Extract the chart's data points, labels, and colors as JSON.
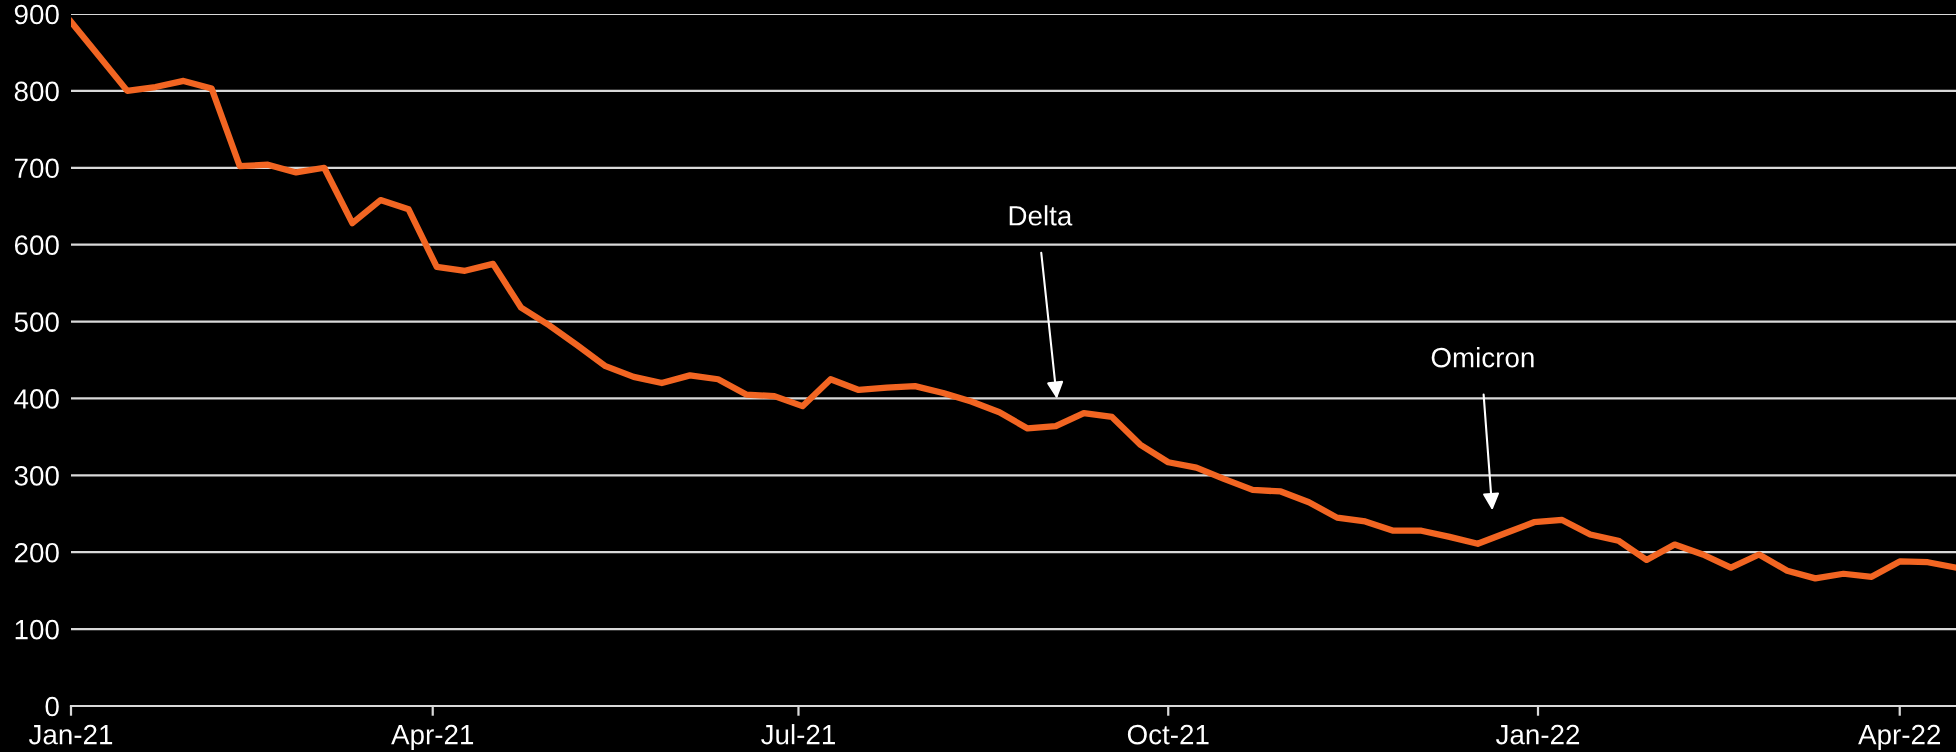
{
  "chart_data": {
    "type": "line",
    "x": [
      "2021-01-01",
      "2021-01-08",
      "2021-01-15",
      "2021-01-22",
      "2021-01-29",
      "2021-02-05",
      "2021-02-12",
      "2021-02-19",
      "2021-02-26",
      "2021-03-05",
      "2021-03-12",
      "2021-03-19",
      "2021-03-26",
      "2021-04-02",
      "2021-04-09",
      "2021-04-16",
      "2021-04-23",
      "2021-04-30",
      "2021-05-07",
      "2021-05-14",
      "2021-05-21",
      "2021-05-28",
      "2021-06-04",
      "2021-06-11",
      "2021-06-18",
      "2021-06-25",
      "2021-07-02",
      "2021-07-09",
      "2021-07-16",
      "2021-07-23",
      "2021-07-30",
      "2021-08-06",
      "2021-08-13",
      "2021-08-20",
      "2021-08-27",
      "2021-09-03",
      "2021-09-10",
      "2021-09-17",
      "2021-09-24",
      "2021-10-01",
      "2021-10-08",
      "2021-10-15",
      "2021-10-22",
      "2021-10-29",
      "2021-11-05",
      "2021-11-12",
      "2021-11-19",
      "2021-11-26",
      "2021-12-03",
      "2021-12-10",
      "2021-12-17",
      "2021-12-24",
      "2021-12-31",
      "2022-01-07",
      "2022-01-14",
      "2022-01-21",
      "2022-01-28",
      "2022-02-04",
      "2022-02-11",
      "2022-02-18",
      "2022-02-25",
      "2022-03-04",
      "2022-03-11",
      "2022-03-18",
      "2022-03-25",
      "2022-04-01",
      "2022-04-08",
      "2022-04-15"
    ],
    "series": [
      {
        "color": "#f26522",
        "values": [
          890,
          845,
          800,
          805,
          813,
          803,
          702,
          704,
          694,
          700,
          628,
          658,
          646,
          571,
          566,
          575,
          518,
          495,
          469,
          442,
          428,
          420,
          430,
          425,
          405,
          403,
          390,
          425,
          411,
          414,
          416,
          407,
          396,
          382,
          361,
          364,
          381,
          376,
          340,
          317,
          310,
          295,
          281,
          279,
          265,
          245,
          240,
          228,
          228,
          220,
          211,
          225,
          239,
          242,
          223,
          215,
          190,
          210,
          197,
          180,
          197,
          176,
          166,
          172,
          168,
          188,
          187,
          180
        ]
      }
    ],
    "xlim": [
      "2021-01-01",
      "2022-04-15"
    ],
    "ylim": [
      0,
      900
    ],
    "xticks": [
      {
        "value": "2021-01-01",
        "label": "Jan-21"
      },
      {
        "value": "2021-04-01",
        "label": "Apr-21"
      },
      {
        "value": "2021-07-01",
        "label": "Jul-21"
      },
      {
        "value": "2021-10-01",
        "label": "Oct-21"
      },
      {
        "value": "2022-01-01",
        "label": "Jan-22"
      },
      {
        "value": "2022-04-01",
        "label": "Apr-22"
      }
    ],
    "yticks": [
      0,
      100,
      200,
      300,
      400,
      500,
      600,
      700,
      800,
      900
    ],
    "grid": "y",
    "legend": false,
    "line_style": "solid",
    "marker": "none",
    "annotations": [
      "Delta",
      "Omicron"
    ]
  }
}
